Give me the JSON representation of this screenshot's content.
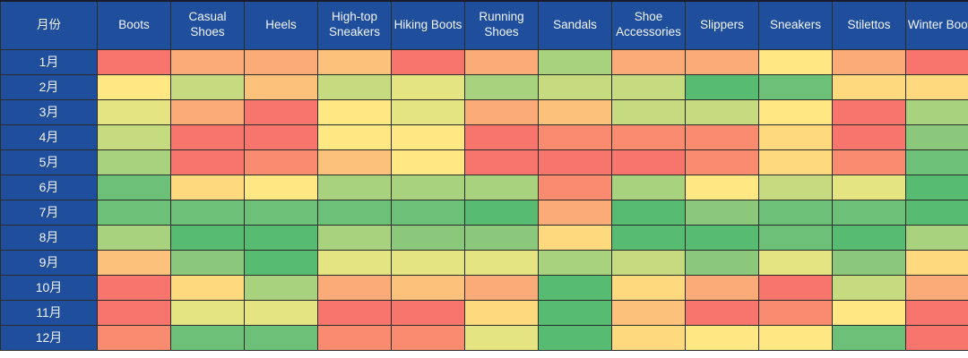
{
  "table": {
    "month_header": "月份",
    "columns": [
      "Boots",
      "Casual Shoes",
      "Heels",
      "High-top Sneakers",
      "Hiking Boots",
      "Running Shoes",
      "Sandals",
      "Shoe Accessories",
      "Slippers",
      "Sneakers",
      "Stilettos",
      "Winter Boots"
    ],
    "rows": [
      "1月",
      "2月",
      "3月",
      "4月",
      "5月",
      "6月",
      "7月",
      "8月",
      "9月",
      "10月",
      "11月",
      "12月"
    ]
  },
  "colors": {
    "header_bg": "#1F4E9C",
    "header_text": "#F2F5FB",
    "grid_line": "#2B2B28",
    "page_bg": "#FFFFFF"
  },
  "chart_data": {
    "type": "heatmap",
    "title": "",
    "xlabel": "",
    "ylabel": "月份",
    "x_categories": [
      "Boots",
      "Casual Shoes",
      "Heels",
      "High-top Sneakers",
      "Hiking Boots",
      "Running Shoes",
      "Sandals",
      "Shoe Accessories",
      "Slippers",
      "Sneakers",
      "Stilettos",
      "Winter Boots"
    ],
    "y_categories": [
      "1月",
      "2月",
      "3月",
      "4月",
      "5月",
      "6月",
      "7月",
      "8月",
      "9月",
      "10月",
      "11月",
      "12月"
    ],
    "legend": "none",
    "grid": true,
    "palette_low_to_high": [
      "#57BB71",
      "#6CC077",
      "#8CC87C",
      "#A8D27E",
      "#C6DB80",
      "#E4E483",
      "#FFE784",
      "#FED97E",
      "#FCC27C",
      "#FBAB78",
      "#F98C70",
      "#F8756D"
    ],
    "scale": {
      "min_level": 0,
      "max_level": 11,
      "low_color_meaning": "green (low)",
      "high_color_meaning": "red (high)"
    },
    "levels": [
      [
        11,
        9,
        9,
        8,
        11,
        9,
        3,
        9,
        9,
        6,
        9,
        11
      ],
      [
        6,
        4,
        8,
        4,
        5,
        3,
        4,
        4,
        0,
        1,
        7,
        7
      ],
      [
        5,
        9,
        11,
        6,
        5,
        9,
        8,
        4,
        4,
        6,
        11,
        3
      ],
      [
        4,
        11,
        11,
        6,
        6,
        11,
        10,
        10,
        10,
        7,
        11,
        2
      ],
      [
        3,
        11,
        10,
        8,
        6,
        11,
        11,
        11,
        10,
        7,
        10,
        1
      ],
      [
        1,
        7,
        6,
        3,
        3,
        3,
        10,
        3,
        6,
        4,
        5,
        0
      ],
      [
        1,
        1,
        1,
        1,
        1,
        0,
        9,
        0,
        2,
        1,
        1,
        0
      ],
      [
        3,
        0,
        0,
        3,
        2,
        2,
        7,
        0,
        0,
        1,
        0,
        3
      ],
      [
        8,
        2,
        0,
        5,
        5,
        5,
        3,
        4,
        2,
        5,
        2,
        7
      ],
      [
        11,
        7,
        3,
        9,
        8,
        9,
        0,
        7,
        9,
        11,
        4,
        9
      ],
      [
        11,
        5,
        5,
        11,
        11,
        7,
        0,
        8,
        11,
        10,
        6,
        11
      ],
      [
        10,
        1,
        1,
        10,
        10,
        5,
        0,
        7,
        6,
        6,
        1,
        11
      ]
    ]
  }
}
